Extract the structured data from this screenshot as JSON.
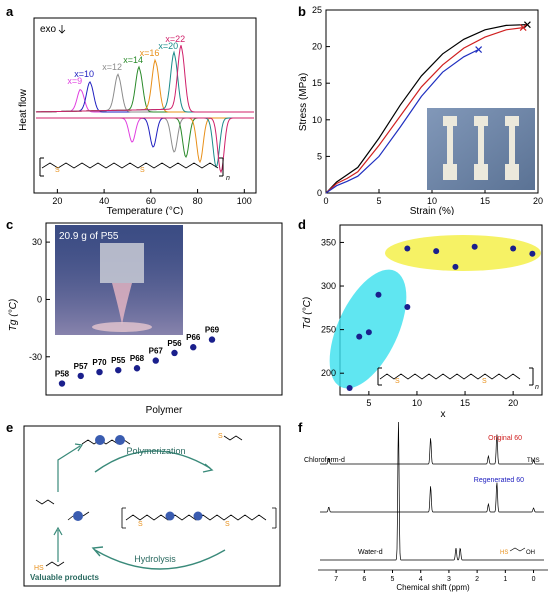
{
  "panels": {
    "a": "a",
    "b": "b",
    "c": "c",
    "d": "d",
    "e": "e",
    "f": "f"
  },
  "chart_data": [
    {
      "panel": "a",
      "type": "line",
      "xlabel": "Temperature (°C)",
      "ylabel": "Heat flow",
      "annotation": "exo",
      "xlim": [
        10,
        105
      ],
      "xticks": [
        20,
        40,
        60,
        80,
        100
      ],
      "series": [
        {
          "name": "x=9",
          "color": "#e040e0",
          "crystallization_peak": 30,
          "melting_peak": 52
        },
        {
          "name": "x=10",
          "color": "#2020c0",
          "crystallization_peak": 34,
          "melting_peak": 61
        },
        {
          "name": "x=12",
          "color": "#8c8c8c",
          "crystallization_peak": 46,
          "melting_peak": 70
        },
        {
          "name": "x=14",
          "color": "#2a8a2a",
          "crystallization_peak": 55,
          "melting_peak": 75
        },
        {
          "name": "x=16",
          "color": "#e8901a",
          "crystallization_peak": 62,
          "melting_peak": 81
        },
        {
          "name": "x=20",
          "color": "#1a8a8a",
          "crystallization_peak": 70,
          "melting_peak": 88
        },
        {
          "name": "x=22",
          "color": "#d0206a",
          "crystallization_peak": 73,
          "melting_peak": 90
        }
      ]
    },
    {
      "panel": "b",
      "type": "line",
      "xlabel": "Strain (%)",
      "ylabel": "Stress (MPa)",
      "xlim": [
        0,
        20
      ],
      "ylim": [
        0,
        25
      ],
      "xticks": [
        0,
        5,
        10,
        15,
        20
      ],
      "yticks": [
        0,
        5,
        10,
        15,
        20,
        25
      ],
      "series": [
        {
          "color": "#000000",
          "x": [
            0,
            1,
            2,
            3,
            5,
            7,
            9,
            11,
            13,
            15,
            17,
            19
          ],
          "y": [
            0,
            1.5,
            2.5,
            3.5,
            7.5,
            12,
            16,
            19,
            21,
            22.3,
            22.9,
            23.0
          ]
        },
        {
          "color": "#d02020",
          "x": [
            0,
            1,
            2,
            3,
            5,
            7,
            9,
            11,
            13,
            15,
            17,
            18.6
          ],
          "y": [
            0,
            1.3,
            2.0,
            2.9,
            6.5,
            10.5,
            14.5,
            17.5,
            19.8,
            21.3,
            22.3,
            22.6
          ]
        },
        {
          "color": "#2030c0",
          "x": [
            0,
            1,
            2,
            3,
            5,
            7,
            9,
            11,
            13,
            14.4
          ],
          "y": [
            0,
            1.0,
            1.6,
            2.3,
            5.0,
            9.0,
            13.2,
            16.5,
            18.6,
            19.6
          ]
        }
      ]
    },
    {
      "panel": "c",
      "type": "scatter",
      "xlabel": "Polymer",
      "ylabel": "Tg (°C)",
      "ylim": [
        -50,
        40
      ],
      "yticks": [
        -30,
        0,
        30
      ],
      "photo_label": "20.9 g of P55",
      "categories": [
        "P58",
        "P57",
        "P70",
        "P55",
        "P68",
        "P67",
        "P56",
        "P66",
        "P69"
      ],
      "values": [
        -44,
        -40,
        -38,
        -37,
        -36,
        -32,
        -28,
        -25,
        -21
      ]
    },
    {
      "panel": "d",
      "type": "scatter",
      "xlabel": "x",
      "ylabel": "Td (°C)",
      "xlim": [
        2,
        23
      ],
      "ylim": [
        175,
        370
      ],
      "xticks": [
        5,
        10,
        15,
        20
      ],
      "yticks": [
        200,
        250,
        300,
        350
      ],
      "x": [
        3,
        4,
        5,
        6,
        9,
        9,
        12,
        14,
        16,
        20,
        22
      ],
      "y": [
        183,
        242,
        247,
        290,
        276,
        343,
        340,
        322,
        345,
        343,
        337
      ]
    },
    {
      "panel": "f",
      "type": "line",
      "xlabel": "Chemical shift (ppm)",
      "xticks": [
        7,
        6,
        5,
        4,
        3,
        2,
        1,
        0
      ],
      "traces": [
        {
          "solvent": "Chloroform-d",
          "ref": "TMS",
          "label": "Original 60",
          "label_color": "#d02020"
        },
        {
          "solvent": "",
          "ref": "",
          "label": "Regenerated 60",
          "label_color": "#2020c0"
        },
        {
          "solvent": "Water-d",
          "ref": "",
          "label": "",
          "label_color": ""
        }
      ]
    }
  ],
  "scheme_e": {
    "top_label": "Polymerization",
    "bottom_label": "Hydrolysis",
    "valuable": "Valuable products"
  },
  "formula": {
    "n": "n",
    "x": "x"
  }
}
